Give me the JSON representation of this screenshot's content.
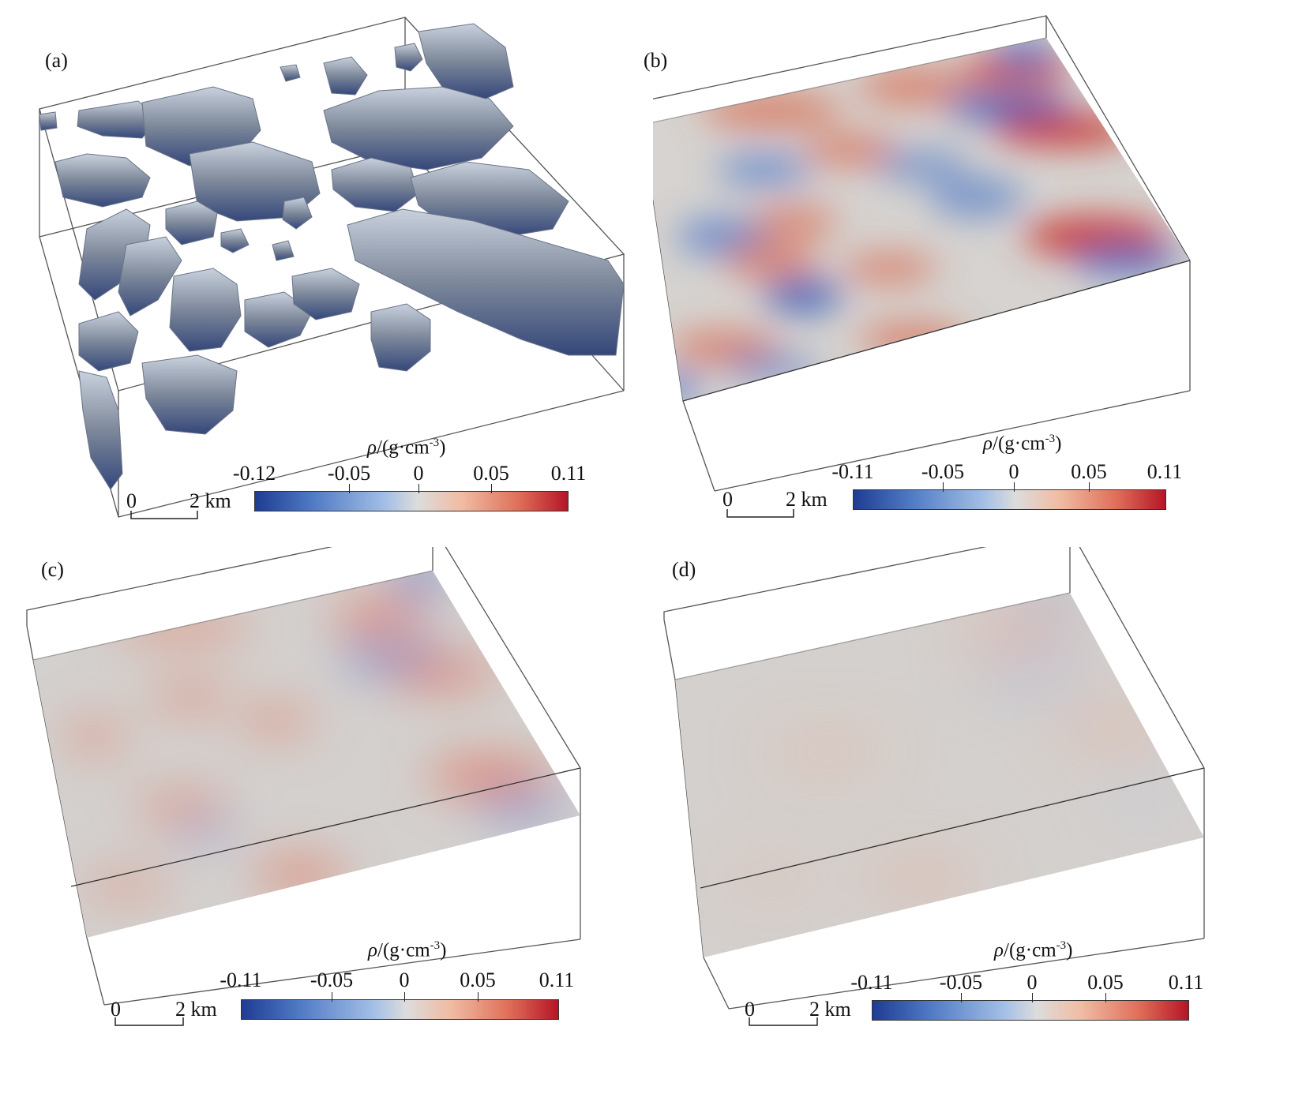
{
  "panels": [
    {
      "label": "(a)",
      "colorbar": {
        "unit_prefix": "ρ",
        "unit_body": "/(g·cm",
        "unit_exp": "-3",
        "unit_close": ")",
        "ticks": [
          "-0.12",
          "-0.05",
          "0",
          "0.05",
          "0.11"
        ]
      },
      "scale": {
        "zero": "0",
        "length": "2 km"
      }
    },
    {
      "label": "(b)",
      "colorbar": {
        "unit_prefix": "ρ",
        "unit_body": "/(g·cm",
        "unit_exp": "-3",
        "unit_close": ")",
        "ticks": [
          "-0.11",
          "-0.05",
          "0",
          "0.05",
          "0.11"
        ]
      },
      "scale": {
        "zero": "0",
        "length": "2 km"
      }
    },
    {
      "label": "(c)",
      "colorbar": {
        "unit_prefix": "ρ",
        "unit_body": "/(g·cm",
        "unit_exp": "-3",
        "unit_close": ")",
        "ticks": [
          "-0.11",
          "-0.05",
          "0",
          "0.05",
          "0.11"
        ]
      },
      "scale": {
        "zero": "0",
        "length": "2 km"
      }
    },
    {
      "label": "(d)",
      "colorbar": {
        "unit_prefix": "ρ",
        "unit_body": "/(g·cm",
        "unit_exp": "-3",
        "unit_close": ")",
        "ticks": [
          "-0.11",
          "-0.05",
          "0",
          "0.05",
          "0.11"
        ]
      },
      "scale": {
        "zero": "0",
        "length": "2 km"
      }
    }
  ],
  "colors": {
    "negative": "#1f3c93",
    "neutral": "#dcdcdc",
    "positive": "#b51527",
    "body": "#8d97a6"
  }
}
